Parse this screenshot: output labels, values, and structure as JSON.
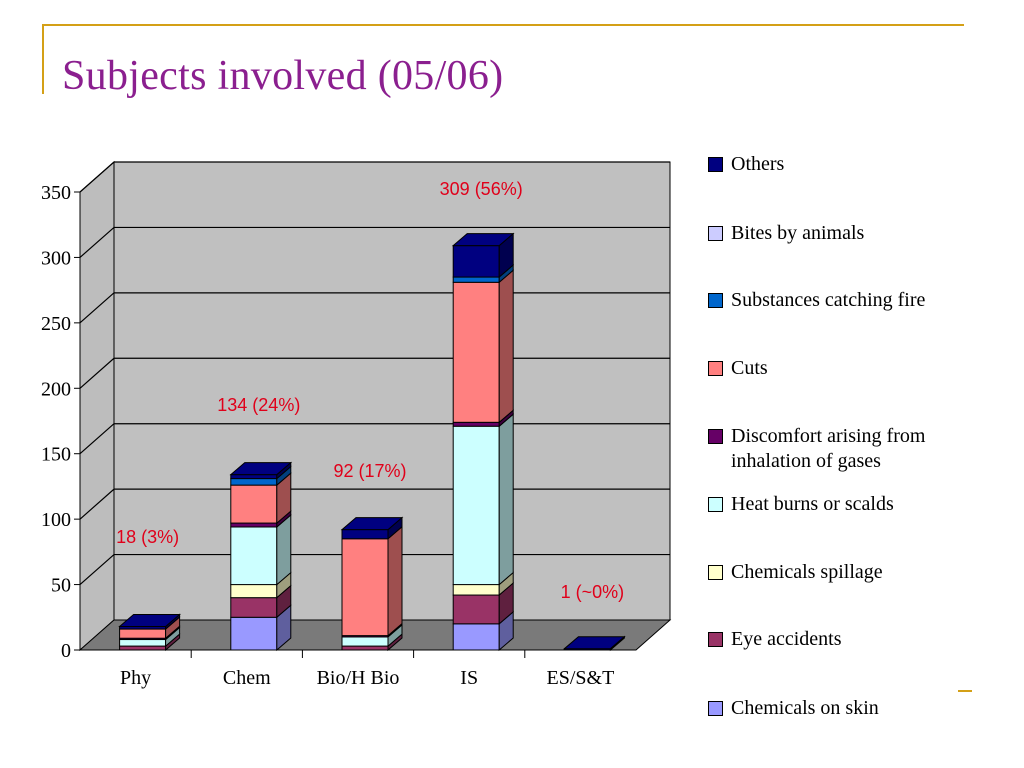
{
  "slide": {
    "title": "Subjects involved (05/06)"
  },
  "colors": {
    "accent": "#d4a017",
    "title": "#8b1f8f",
    "annotation": "#e0001a"
  },
  "chart_data": {
    "type": "bar",
    "stacked": true,
    "three_d": true,
    "title": "",
    "xlabel": "",
    "ylabel": "",
    "ylim": [
      0,
      350
    ],
    "yticks": [
      0,
      50,
      100,
      150,
      200,
      250,
      300,
      350
    ],
    "grid": true,
    "legend_position": "right",
    "categories": [
      "Phy",
      "Chem",
      "Bio/H Bio",
      "IS",
      "ES/S&T"
    ],
    "series": [
      {
        "name": "Chemicals on skin",
        "color": "#9999ff",
        "values": [
          0,
          25,
          0,
          20,
          0
        ]
      },
      {
        "name": "Eye accidents",
        "color": "#993366",
        "values": [
          3,
          15,
          3,
          22,
          0
        ]
      },
      {
        "name": "Chemicals spillage",
        "color": "#ffffcc",
        "values": [
          0,
          10,
          0,
          8,
          0
        ]
      },
      {
        "name": "Heat burns or scalds",
        "color": "#ccffff",
        "values": [
          5,
          44,
          7,
          121,
          0
        ]
      },
      {
        "name": "Discomfort arising from inhalation of gases",
        "color": "#660066",
        "values": [
          1,
          3,
          1,
          3,
          0
        ]
      },
      {
        "name": "Cuts",
        "color": "#ff8080",
        "values": [
          7,
          29,
          74,
          107,
          0
        ]
      },
      {
        "name": "Substances catching fire",
        "color": "#0066cc",
        "values": [
          0,
          5,
          0,
          4,
          0
        ]
      },
      {
        "name": "Bites by animals",
        "color": "#ccccff",
        "values": [
          0,
          0,
          0,
          0,
          0
        ]
      },
      {
        "name": "Others",
        "color": "#000080",
        "values": [
          2,
          3,
          7,
          24,
          1
        ]
      }
    ],
    "totals": [
      18,
      134,
      92,
      309,
      1
    ],
    "annotations": [
      "18 (3%)",
      "134 (24%)",
      "92 (17%)",
      "309 (56%)",
      "1 (~0%)"
    ]
  },
  "legend": [
    {
      "label": "Others",
      "color": "#000080"
    },
    {
      "label": "Bites by animals",
      "color": "#ccccff"
    },
    {
      "label": "Substances catching fire",
      "color": "#0066cc"
    },
    {
      "label": "Cuts",
      "color": "#ff8080"
    },
    {
      "label": "Discomfort arising from inhalation of gases",
      "color": "#660066"
    },
    {
      "label": "Heat burns or scalds",
      "color": "#ccffff"
    },
    {
      "label": "Chemicals spillage",
      "color": "#ffffcc"
    },
    {
      "label": "Eye accidents",
      "color": "#993366"
    },
    {
      "label": "Chemicals on skin",
      "color": "#9999ff"
    }
  ]
}
